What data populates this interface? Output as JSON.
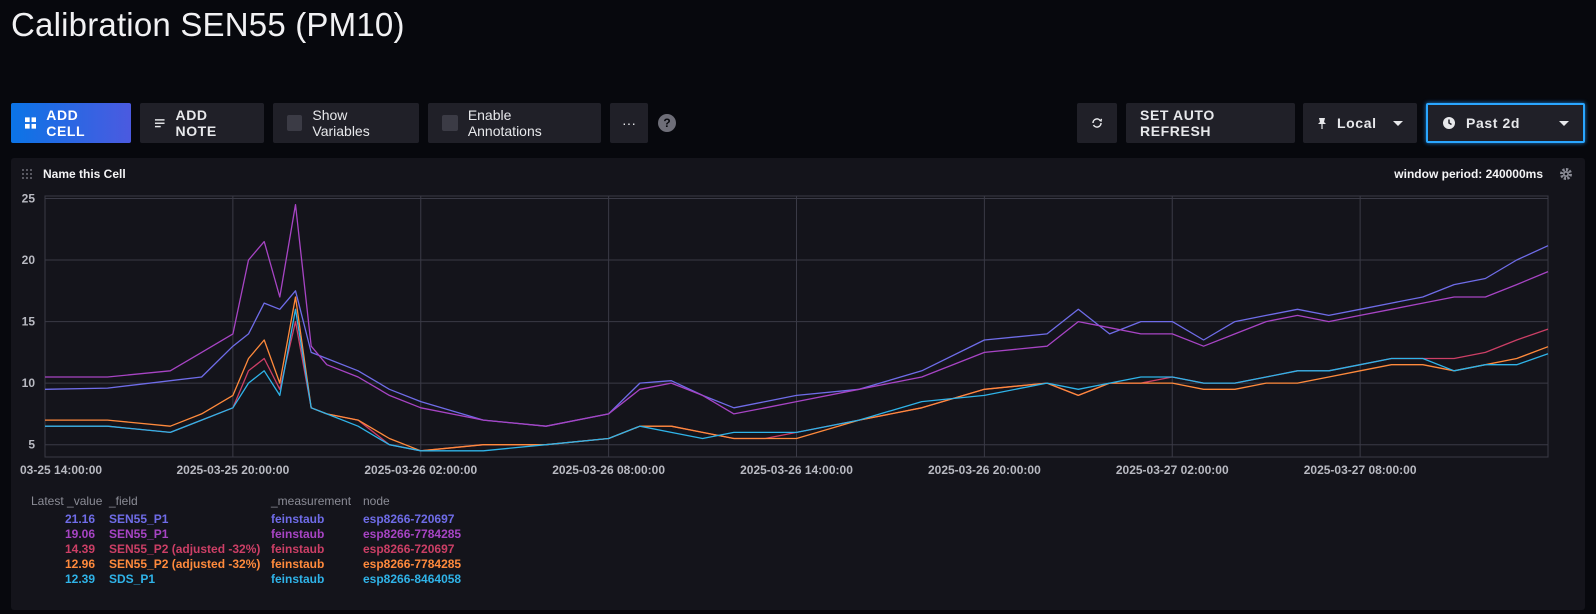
{
  "page": {
    "title": "Calibration SEN55 (PM10)"
  },
  "toolbar": {
    "add_cell": "ADD CELL",
    "add_note": "ADD NOTE",
    "show_variables": "Show Variables",
    "enable_annotations": "Enable Annotations",
    "more": "···",
    "help": "?",
    "set_auto_refresh": "SET AUTO REFRESH",
    "timezone": "Local",
    "time_range": "Past 2d"
  },
  "cell": {
    "title": "Name this Cell",
    "window_period": "window period: 240000ms"
  },
  "chart_data": {
    "type": "line",
    "ylim": [
      4,
      25.2
    ],
    "y_ticks": [
      5,
      10,
      15,
      20,
      25
    ],
    "x_range": [
      "2025-03-25 14:00",
      "2025-03-27 14:00"
    ],
    "x_tick_labels": [
      "03-25 14:00:00",
      "2025-03-25 20:00:00",
      "2025-03-26 02:00:00",
      "2025-03-26 08:00:00",
      "2025-03-26 14:00:00",
      "2025-03-26 20:00:00",
      "2025-03-27 02:00:00",
      "2025-03-27 08:00:00"
    ],
    "grid": true,
    "series_hours": [
      0,
      2,
      4,
      5,
      6,
      6.5,
      7,
      7.5,
      8,
      8.5,
      9,
      10,
      11,
      12,
      14,
      16,
      18,
      19,
      20,
      21,
      22,
      23,
      24,
      26,
      28,
      30,
      32,
      33,
      34,
      35,
      36,
      37,
      38,
      39,
      40,
      41,
      42,
      43,
      44,
      45,
      46,
      47,
      48
    ],
    "series": [
      {
        "name": "SEN55_P1 esp8266-720697",
        "color": "#6f6ce8",
        "values": [
          9.5,
          9.6,
          10.2,
          10.5,
          13,
          14,
          16.5,
          16,
          17.5,
          12.5,
          12,
          11,
          9.5,
          8.5,
          7,
          6.5,
          7.5,
          10,
          10.2,
          9,
          8,
          8.5,
          9,
          9.5,
          11,
          13.5,
          14,
          16,
          14,
          15,
          15,
          13.5,
          15,
          15.5,
          16,
          15.5,
          16,
          16.5,
          17,
          18,
          18.5,
          20,
          21.16
        ]
      },
      {
        "name": "SEN55_P1 esp8266-7784285",
        "color": "#a744c4",
        "values": [
          10.5,
          10.5,
          11,
          12.5,
          14,
          20,
          21.5,
          17,
          24.5,
          13,
          11.5,
          10.5,
          9,
          8,
          7,
          6.5,
          7.5,
          9.5,
          10,
          9,
          7.5,
          8,
          8.5,
          9.5,
          10.5,
          12.5,
          13,
          15,
          14.5,
          14,
          14,
          13,
          14,
          15,
          15.5,
          15,
          15.5,
          16,
          16.5,
          17,
          17,
          18,
          19.06
        ]
      },
      {
        "name": "SEN55_P2 (adjusted -32%) esp8266-720697",
        "color": "#cc3f66",
        "values": [
          6.5,
          6.5,
          6,
          7,
          8,
          11,
          12,
          9.5,
          15,
          8,
          7.5,
          7,
          5,
          4.5,
          5,
          5,
          5.5,
          6.5,
          6.5,
          6,
          5.5,
          5.5,
          6,
          7,
          8,
          9.5,
          10,
          9,
          10,
          10,
          10.5,
          10,
          10,
          10.5,
          11,
          11,
          11.5,
          12,
          12,
          12,
          12.5,
          13.5,
          14.39
        ]
      },
      {
        "name": "SEN55_P2 (adjusted -32%) esp8266-7784285",
        "color": "#ff8a3c",
        "values": [
          7,
          7,
          6.5,
          7.5,
          9,
          12,
          13.5,
          10,
          17,
          8,
          7.5,
          7,
          5.5,
          4.5,
          5,
          5,
          5.5,
          6.5,
          6.5,
          6,
          5.5,
          5.5,
          5.5,
          7,
          8,
          9.5,
          10,
          9,
          10,
          10,
          10,
          9.5,
          9.5,
          10,
          10,
          10.5,
          11,
          11.5,
          11.5,
          11,
          11.5,
          12,
          12.96
        ]
      },
      {
        "name": "SDS_P1 esp8266-8464058",
        "color": "#2fb3e8",
        "values": [
          6.5,
          6.5,
          6,
          7,
          8,
          10,
          11,
          9,
          16,
          8,
          7.5,
          6.5,
          5,
          4.5,
          4.5,
          5,
          5.5,
          6.5,
          6,
          5.5,
          6,
          6,
          6,
          7,
          8.5,
          9,
          10,
          9.5,
          10,
          10.5,
          10.5,
          10,
          10,
          10.5,
          11,
          11,
          11.5,
          12,
          12,
          11,
          11.5,
          11.5,
          12.39
        ]
      }
    ]
  },
  "legend": {
    "headers": [
      "Latest _value",
      "_field",
      "_measurement",
      "node"
    ],
    "rows": [
      {
        "value": "21.16",
        "field": "SEN55_P1",
        "measurement": "feinstaub",
        "node": "esp8266-720697",
        "color": "#6f6ce8"
      },
      {
        "value": "19.06",
        "field": "SEN55_P1",
        "measurement": "feinstaub",
        "node": "esp8266-7784285",
        "color": "#a744c4"
      },
      {
        "value": "14.39",
        "field": "SEN55_P2 (adjusted -32%)",
        "measurement": "feinstaub",
        "node": "esp8266-720697",
        "color": "#cc3f66"
      },
      {
        "value": "12.96",
        "field": "SEN55_P2 (adjusted -32%)",
        "measurement": "feinstaub",
        "node": "esp8266-7784285",
        "color": "#ff8a3c"
      },
      {
        "value": "12.39",
        "field": "SDS_P1",
        "measurement": "feinstaub",
        "node": "esp8266-8464058",
        "color": "#2fb3e8"
      }
    ]
  }
}
